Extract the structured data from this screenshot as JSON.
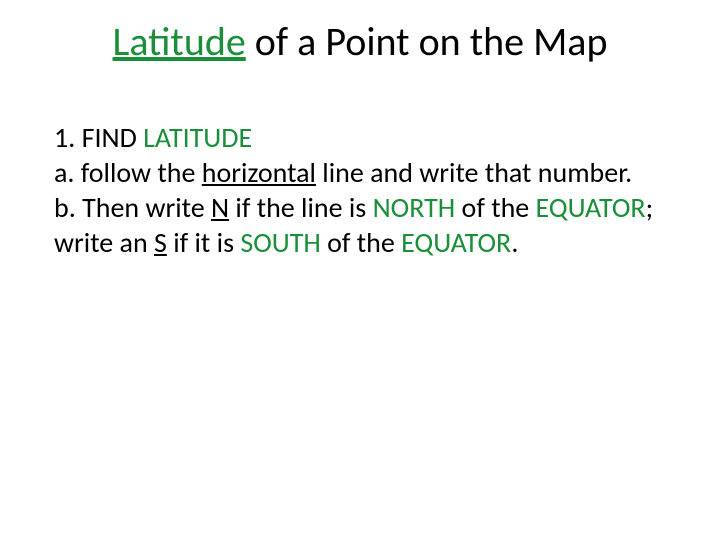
{
  "colors": {
    "green": "#1a8f3a",
    "black": "#000000",
    "background": "#ffffff"
  },
  "typography": {
    "title_fontsize": 40,
    "body_fontsize": 28,
    "font_family": "Calibri"
  },
  "title": {
    "word_latitude": "Latitude",
    "rest": " of a Point on the Map"
  },
  "body": {
    "line1_num": "1. ",
    "line1_find": "FIND ",
    "line1_lat": "LATITUDE",
    "a_prefix": " a. follow the ",
    "a_horizontal": "horizontal",
    "a_after": " line and write that number.",
    "b_prefix": "b. Then write ",
    "b_N": "N",
    "b_mid1": " if the line is ",
    "b_north": "NORTH",
    "b_mid2": " of the ",
    "b_equator1": "EQUATOR",
    "b_semicolon": "; write an ",
    "b_S": "S",
    "b_mid3": " if it is ",
    "b_south": "SOUTH",
    "b_mid4": " of the ",
    "b_equator2": "EQUATOR",
    "b_period": "."
  }
}
